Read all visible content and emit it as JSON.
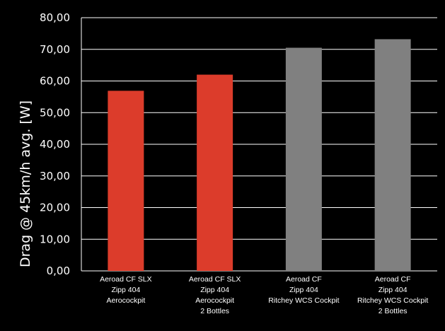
{
  "chart_data": {
    "type": "bar",
    "title": "",
    "xlabel": "",
    "ylabel": "Drag @ 45km/h avg. [W]",
    "ylim": [
      0,
      80
    ],
    "yticks": [
      "0,00",
      "10,00",
      "20,00",
      "30,00",
      "40,00",
      "50,00",
      "60,00",
      "70,00",
      "80,00"
    ],
    "grid": true,
    "categories": [
      [
        "Aeroad CF SLX",
        "Zipp 404",
        "Aerocockpit"
      ],
      [
        "Aeroad CF SLX",
        "Zipp 404",
        "Aerocockpit",
        "2 Bottles"
      ],
      [
        "Aeroad CF",
        "Zipp 404",
        "Ritchey WCS Cockpit"
      ],
      [
        "Aeroad CF",
        "Zipp 404",
        "Ritchey WCS Cockpit",
        "2 Bottles"
      ]
    ],
    "values": [
      56.9,
      62.0,
      70.5,
      73.2
    ],
    "colors": [
      "#dc3c2b",
      "#dc3c2b",
      "#808080",
      "#808080"
    ],
    "background": "#000000",
    "grid_color": "#ffffff"
  }
}
